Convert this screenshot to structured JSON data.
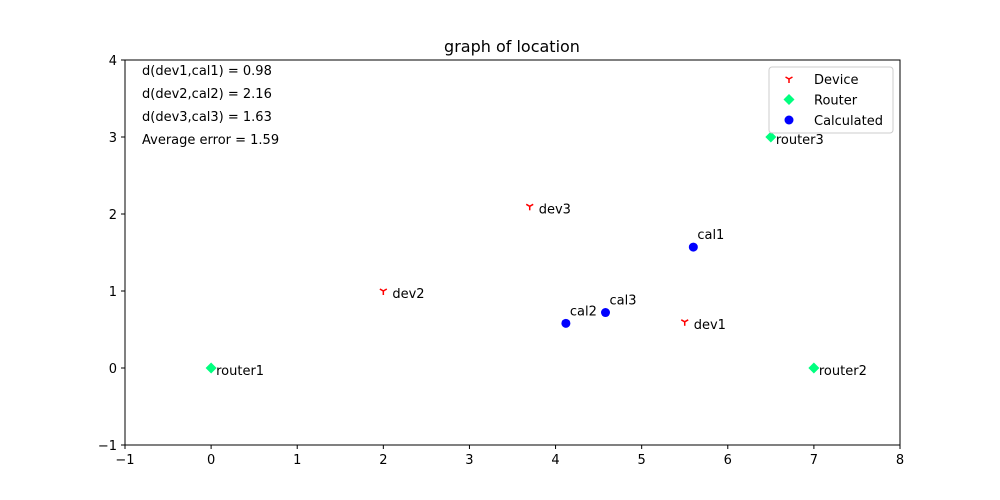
{
  "chart_data": {
    "type": "scatter",
    "title": "graph of location",
    "xlabel": "",
    "ylabel": "",
    "xlim": [
      -1,
      8
    ],
    "ylim": [
      -1,
      4
    ],
    "x_ticks": [
      "−1",
      "0",
      "1",
      "2",
      "3",
      "4",
      "5",
      "6",
      "7",
      "8"
    ],
    "y_ticks": [
      "−1",
      "0",
      "1",
      "2",
      "3",
      "4"
    ],
    "grid": false,
    "legend_position": "top-right",
    "series": [
      {
        "name": "Device",
        "marker": "tri-down",
        "color": "#ff0000",
        "points": [
          {
            "label": "dev1",
            "x": 5.5,
            "y": 0.6
          },
          {
            "label": "dev2",
            "x": 2.0,
            "y": 1.0
          },
          {
            "label": "dev3",
            "x": 3.7,
            "y": 2.1
          }
        ]
      },
      {
        "name": "Router",
        "marker": "diamond",
        "color": "#00ff7f",
        "points": [
          {
            "label": "router1",
            "x": 0.0,
            "y": 0.0
          },
          {
            "label": "router2",
            "x": 7.0,
            "y": 0.0
          },
          {
            "label": "router3",
            "x": 6.5,
            "y": 3.0
          }
        ]
      },
      {
        "name": "Calculated",
        "marker": "circle",
        "color": "#0000ff",
        "points": [
          {
            "label": "cal1",
            "x": 5.6,
            "y": 1.57
          },
          {
            "label": "cal2",
            "x": 4.12,
            "y": 0.58
          },
          {
            "label": "cal3",
            "x": 4.58,
            "y": 0.72
          }
        ]
      }
    ],
    "annotations": [
      "d(dev1,cal1) = 0.98",
      "d(dev2,cal2) = 2.16",
      "d(dev3,cal3) = 1.63",
      "Average error = 1.59"
    ]
  }
}
